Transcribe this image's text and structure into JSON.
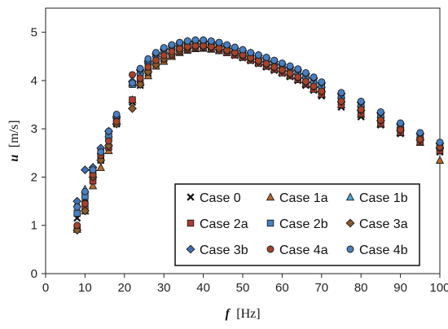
{
  "chart_data": {
    "type": "scatter",
    "xlabel": {
      "var": "f",
      "unit": "[Hz]"
    },
    "ylabel": {
      "var": "u",
      "unit": "[m/s]"
    },
    "xlim": [
      0,
      100
    ],
    "ylim": [
      0,
      5.5
    ],
    "xticks": [
      0,
      10,
      20,
      30,
      40,
      50,
      60,
      70,
      80,
      90,
      100
    ],
    "yticks": [
      0,
      1,
      2,
      3,
      4,
      5
    ],
    "grid": false,
    "legend": {
      "placement": "bottom-right",
      "columns": 3
    },
    "x": [
      8,
      10,
      12,
      14,
      16,
      18,
      22,
      24,
      26,
      28,
      30,
      32,
      34,
      36,
      38,
      40,
      42,
      44,
      46,
      48,
      50,
      52,
      54,
      56,
      58,
      60,
      62,
      64,
      66,
      68,
      70,
      75,
      80,
      85,
      90,
      95,
      100
    ],
    "series": [
      {
        "name": "Case 0",
        "marker": "x",
        "color": "#111111",
        "values": [
          1.15,
          1.55,
          2.0,
          2.4,
          2.7,
          3.1,
          3.55,
          3.9,
          4.15,
          4.3,
          4.45,
          4.52,
          4.6,
          4.65,
          4.68,
          4.68,
          4.66,
          4.63,
          4.58,
          4.52,
          4.47,
          4.41,
          4.35,
          4.28,
          4.21,
          4.15,
          4.08,
          4.0,
          3.9,
          3.8,
          3.68,
          3.45,
          3.25,
          3.08,
          2.9,
          2.72,
          2.52
        ]
      },
      {
        "name": "Case 1a",
        "marker": "triangle",
        "color": "#b8692a",
        "values": [
          0.92,
          1.3,
          1.82,
          2.2,
          2.55,
          3.15,
          3.6,
          3.95,
          4.1,
          4.3,
          4.4,
          4.5,
          4.58,
          4.63,
          4.66,
          4.67,
          4.65,
          4.62,
          4.58,
          4.54,
          4.5,
          4.44,
          4.38,
          4.3,
          4.24,
          4.17,
          4.1,
          4.02,
          3.93,
          3.83,
          3.72,
          3.5,
          3.3,
          3.1,
          2.92,
          2.72,
          2.35
        ]
      },
      {
        "name": "Case 1b",
        "marker": "triangle",
        "color": "#4fa8d8",
        "values": [
          1.45,
          1.75,
          2.2,
          2.55,
          2.9,
          3.28,
          3.95,
          4.2,
          4.42,
          4.56,
          4.64,
          4.72,
          4.76,
          4.8,
          4.82,
          4.82,
          4.8,
          4.76,
          4.7,
          4.65,
          4.6,
          4.55,
          4.5,
          4.45,
          4.38,
          4.32,
          4.26,
          4.2,
          4.12,
          4.02,
          3.92,
          3.7,
          3.52,
          3.3,
          3.08,
          2.87,
          2.68
        ]
      },
      {
        "name": "Case 2a",
        "marker": "square",
        "color": "#b23a32",
        "values": [
          0.95,
          1.35,
          1.92,
          2.35,
          2.62,
          3.12,
          3.6,
          3.98,
          4.2,
          4.35,
          4.45,
          4.53,
          4.6,
          4.65,
          4.68,
          4.68,
          4.66,
          4.62,
          4.58,
          4.53,
          4.48,
          4.42,
          4.36,
          4.3,
          4.23,
          4.16,
          4.1,
          4.02,
          3.93,
          3.82,
          3.72,
          3.5,
          3.32,
          3.12,
          2.93,
          2.73,
          2.55
        ]
      },
      {
        "name": "Case 2b",
        "marker": "square",
        "color": "#4682c4",
        "values": [
          1.25,
          1.6,
          2.1,
          2.5,
          2.85,
          3.2,
          3.92,
          4.15,
          4.38,
          4.52,
          4.62,
          4.7,
          4.75,
          4.78,
          4.8,
          4.8,
          4.78,
          4.75,
          4.7,
          4.64,
          4.58,
          4.52,
          4.47,
          4.42,
          4.35,
          4.28,
          4.22,
          4.15,
          4.07,
          3.97,
          3.87,
          3.65,
          3.47,
          3.25,
          3.03,
          2.83,
          2.63
        ]
      },
      {
        "name": "Case 3a",
        "marker": "diamond",
        "color": "#8b5a2b",
        "values": [
          0.9,
          1.3,
          2.0,
          2.35,
          2.65,
          3.1,
          3.42,
          3.92,
          4.18,
          4.33,
          4.45,
          4.55,
          4.62,
          4.67,
          4.7,
          4.7,
          4.68,
          4.64,
          4.6,
          4.56,
          4.51,
          4.45,
          4.39,
          4.33,
          4.26,
          4.2,
          4.13,
          4.05,
          3.96,
          3.87,
          3.77,
          3.56,
          3.38,
          3.17,
          2.97,
          2.77,
          2.6
        ]
      },
      {
        "name": "Case 3b",
        "marker": "diamond",
        "color": "#3f6fb8",
        "values": [
          1.5,
          2.15,
          2.2,
          2.6,
          2.95,
          3.25,
          3.98,
          4.22,
          4.4,
          4.55,
          4.65,
          4.72,
          4.77,
          4.8,
          4.82,
          4.82,
          4.8,
          4.77,
          4.72,
          4.67,
          4.62,
          4.57,
          4.52,
          4.47,
          4.4,
          4.34,
          4.28,
          4.22,
          4.14,
          4.05,
          3.95,
          3.73,
          3.55,
          3.33,
          3.1,
          2.9,
          2.7
        ]
      },
      {
        "name": "Case 4a",
        "marker": "circle",
        "color": "#a5432a",
        "values": [
          1.0,
          1.45,
          2.05,
          2.45,
          2.75,
          3.15,
          4.12,
          4.05,
          4.28,
          4.42,
          4.52,
          4.6,
          4.66,
          4.7,
          4.72,
          4.72,
          4.7,
          4.67,
          4.63,
          4.58,
          4.53,
          4.47,
          4.41,
          4.35,
          4.28,
          4.22,
          4.15,
          4.07,
          3.98,
          3.88,
          3.78,
          3.57,
          3.4,
          3.18,
          2.98,
          2.78,
          2.62
        ]
      },
      {
        "name": "Case 4b",
        "marker": "circle",
        "color": "#4a7fc0",
        "values": [
          1.38,
          1.7,
          2.15,
          2.52,
          2.95,
          3.3,
          3.95,
          4.25,
          4.45,
          4.58,
          4.68,
          4.74,
          4.79,
          4.82,
          4.84,
          4.84,
          4.82,
          4.79,
          4.74,
          4.69,
          4.64,
          4.58,
          4.53,
          4.48,
          4.42,
          4.36,
          4.3,
          4.24,
          4.16,
          4.07,
          3.97,
          3.75,
          3.57,
          3.35,
          3.12,
          2.92,
          2.72
        ]
      }
    ]
  }
}
